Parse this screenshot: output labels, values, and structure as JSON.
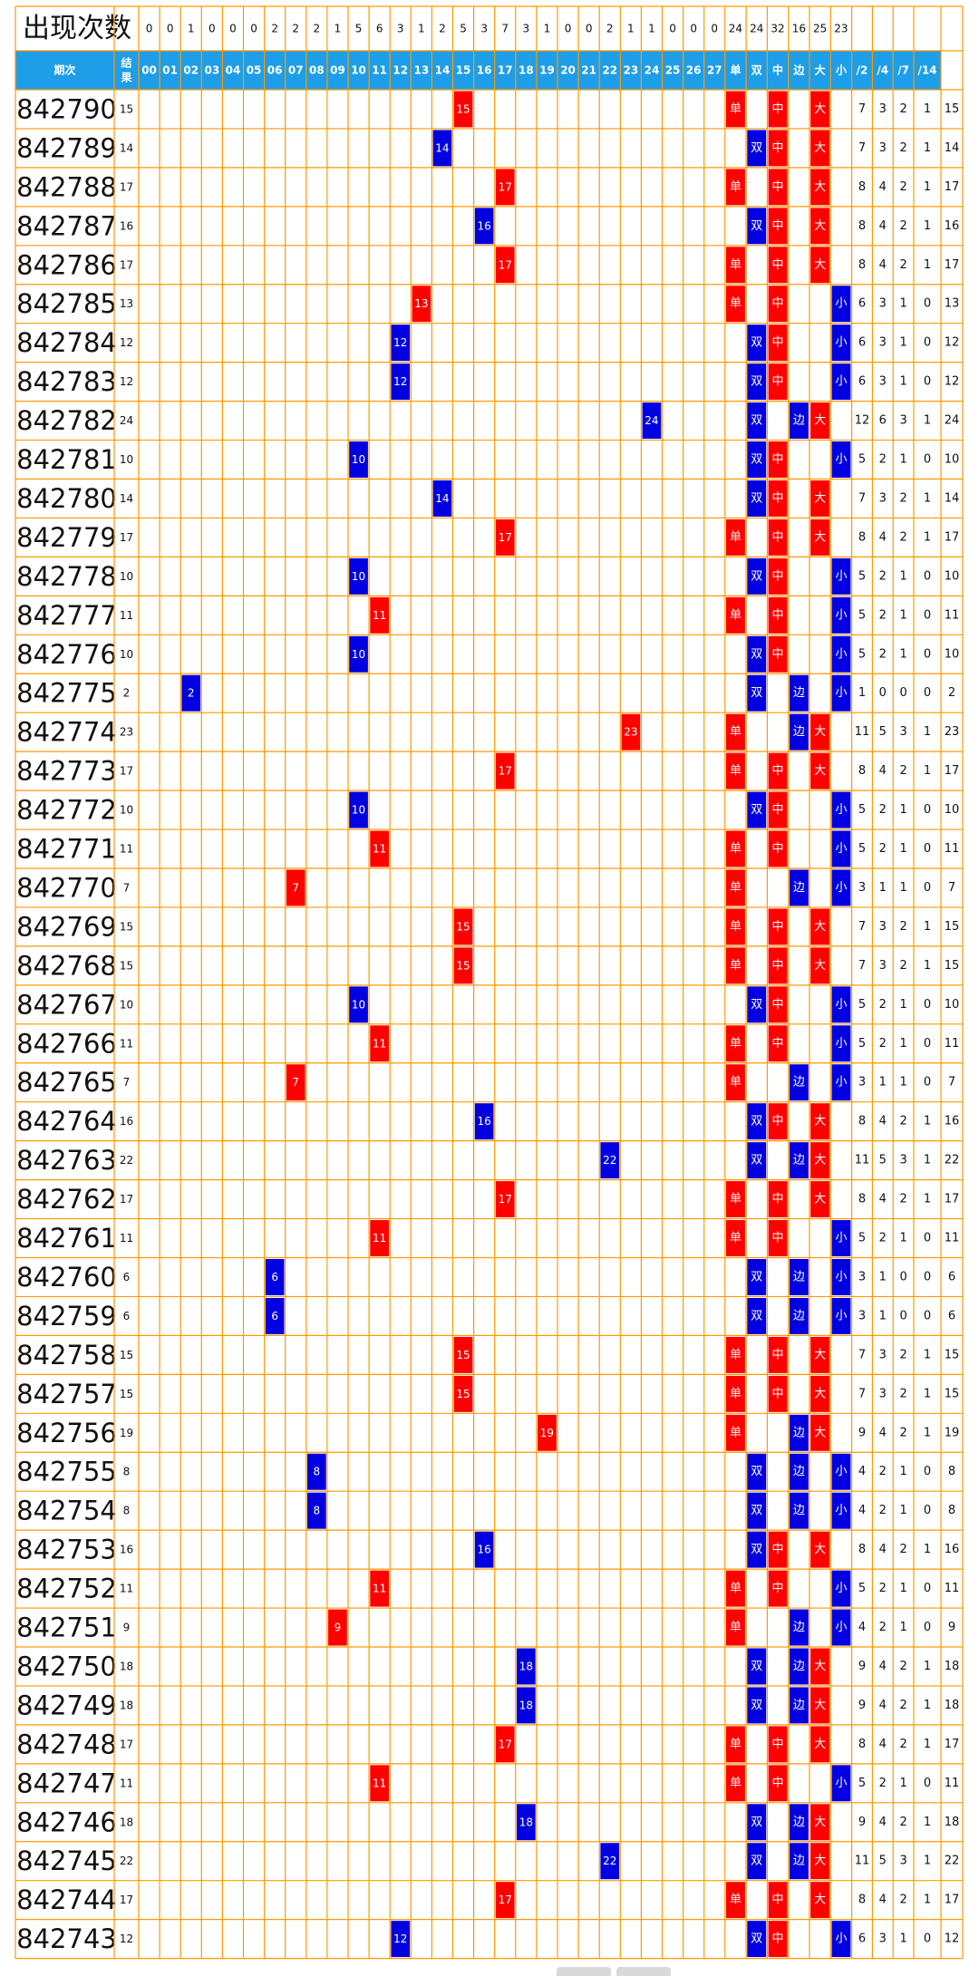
{
  "header": {
    "count_title": "出现次数",
    "columns": [
      "期次",
      "结果",
      "00",
      "01",
      "02",
      "03",
      "04",
      "05",
      "06",
      "07",
      "08",
      "09",
      "10",
      "11",
      "12",
      "13",
      "14",
      "15",
      "16",
      "17",
      "18",
      "19",
      "20",
      "21",
      "22",
      "23",
      "24",
      "25",
      "26",
      "27",
      "单",
      "双",
      "中",
      "边",
      "大",
      "小",
      "/2",
      "/4",
      "/7",
      "/14"
    ],
    "counts": [
      "0",
      "0",
      "1",
      "0",
      "0",
      "0",
      "2",
      "2",
      "2",
      "1",
      "5",
      "6",
      "3",
      "1",
      "2",
      "5",
      "3",
      "7",
      "3",
      "1",
      "0",
      "0",
      "2",
      "1",
      "1",
      "0",
      "0",
      "0",
      "24",
      "24",
      "32",
      "16",
      "25",
      "23",
      "",
      "",
      "",
      ""
    ]
  },
  "colors": {
    "grid": "#ff9900",
    "header_bg": "#1e9ee8",
    "red": "#ff0000",
    "blue": "#0000e0",
    "text": "#111111"
  },
  "rows": [
    {
      "period": "842790",
      "result": "15"
    },
    {
      "period": "842789",
      "result": "14"
    },
    {
      "period": "842788",
      "result": "17"
    },
    {
      "period": "842787",
      "result": "16"
    },
    {
      "period": "842786",
      "result": "17"
    },
    {
      "period": "842785",
      "result": "13"
    },
    {
      "period": "842784",
      "result": "12"
    },
    {
      "period": "842783",
      "result": "12"
    },
    {
      "period": "842782",
      "result": "24"
    },
    {
      "period": "842781",
      "result": "10"
    },
    {
      "period": "842780",
      "result": "14"
    },
    {
      "period": "842779",
      "result": "17"
    },
    {
      "period": "842778",
      "result": "10"
    },
    {
      "period": "842777",
      "result": "11"
    },
    {
      "period": "842776",
      "result": "10"
    },
    {
      "period": "842775",
      "result": "2"
    },
    {
      "period": "842774",
      "result": "23"
    },
    {
      "period": "842773",
      "result": "17"
    },
    {
      "period": "842772",
      "result": "10"
    },
    {
      "period": "842771",
      "result": "11"
    },
    {
      "period": "842770",
      "result": "7"
    },
    {
      "period": "842769",
      "result": "15"
    },
    {
      "period": "842768",
      "result": "15"
    },
    {
      "period": "842767",
      "result": "10"
    },
    {
      "period": "842766",
      "result": "11"
    },
    {
      "period": "842765",
      "result": "7"
    },
    {
      "period": "842764",
      "result": "16"
    },
    {
      "period": "842763",
      "result": "22"
    },
    {
      "period": "842762",
      "result": "17"
    },
    {
      "period": "842761",
      "result": "11"
    },
    {
      "period": "842760",
      "result": "6"
    },
    {
      "period": "842759",
      "result": "6"
    },
    {
      "period": "842758",
      "result": "15"
    },
    {
      "period": "842757",
      "result": "15"
    },
    {
      "period": "842756",
      "result": "19"
    },
    {
      "period": "842755",
      "result": "8"
    },
    {
      "period": "842754",
      "result": "8"
    },
    {
      "period": "842753",
      "result": "16"
    },
    {
      "period": "842752",
      "result": "11"
    },
    {
      "period": "842751",
      "result": "9"
    },
    {
      "period": "842750",
      "result": "18"
    },
    {
      "period": "842749",
      "result": "18"
    },
    {
      "period": "842748",
      "result": "17"
    },
    {
      "period": "842747",
      "result": "11"
    },
    {
      "period": "842746",
      "result": "18"
    },
    {
      "period": "842745",
      "result": "22"
    },
    {
      "period": "842744",
      "result": "17"
    },
    {
      "period": "842743",
      "result": "12"
    }
  ],
  "labels": {
    "odd": "单",
    "even": "双",
    "middle": "中",
    "edge": "边",
    "big": "大",
    "small": "小"
  }
}
